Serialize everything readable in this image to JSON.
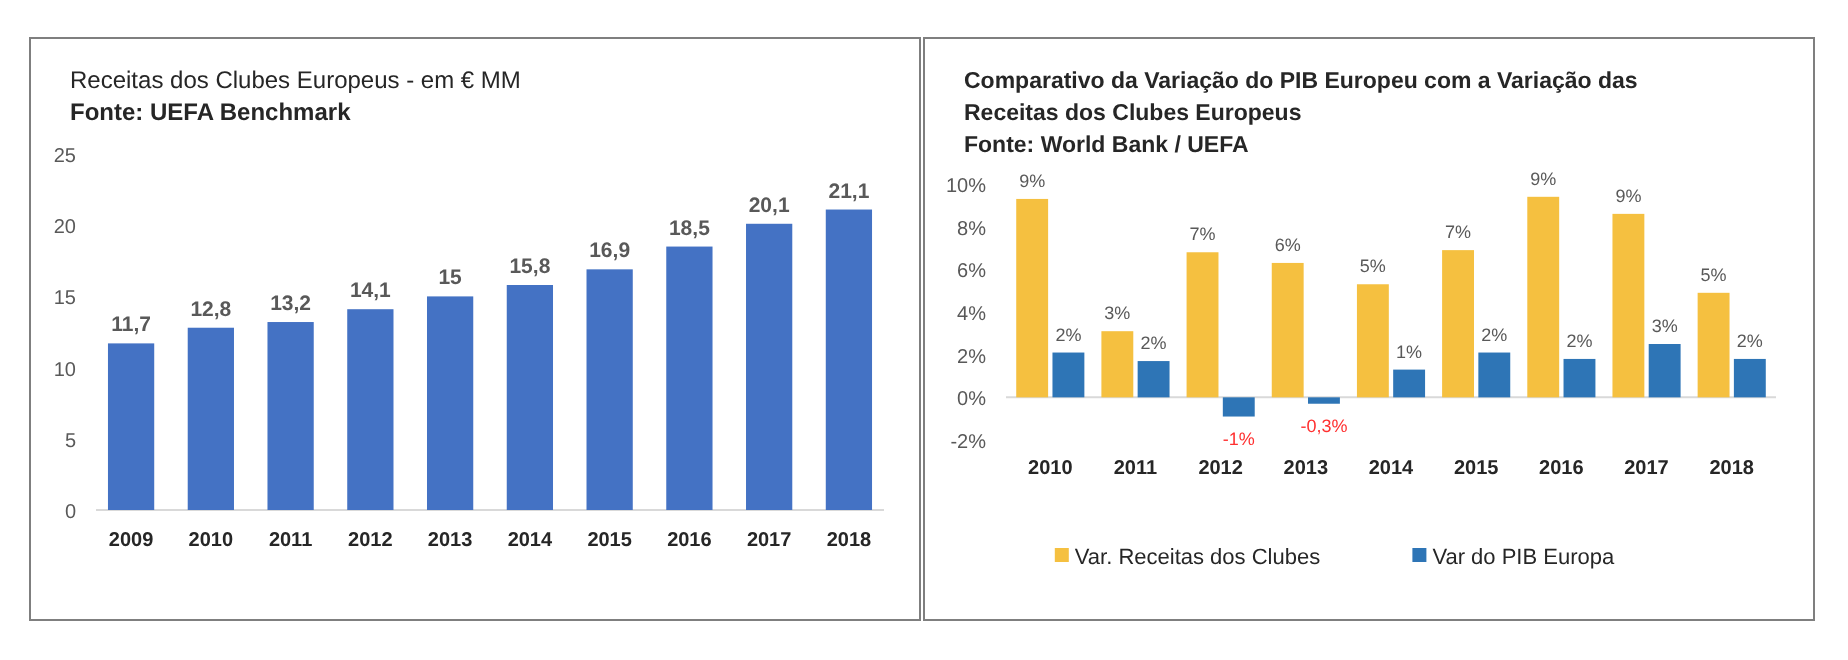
{
  "chart_data": [
    {
      "type": "bar",
      "title": "Receitas dos Clubes Europeus - em € MM",
      "subtitle": "Fonte: UEFA Benchmark",
      "categories": [
        "2009",
        "2010",
        "2011",
        "2012",
        "2013",
        "2014",
        "2015",
        "2016",
        "2017",
        "2018"
      ],
      "values": [
        11.7,
        12.8,
        13.2,
        14.1,
        15,
        15.8,
        16.9,
        18.5,
        20.1,
        21.1
      ],
      "value_labels": [
        "11,7",
        "12,8",
        "13,2",
        "14,1",
        "15",
        "15,8",
        "16,9",
        "18,5",
        "20,1",
        "21,1"
      ],
      "color": "#4472c4",
      "ylim": [
        0,
        25
      ],
      "yticks": [
        0,
        5,
        10,
        15,
        20,
        25
      ],
      "grid": false,
      "legend": false
    },
    {
      "type": "bar",
      "title": "Comparativo da Variação do PIB Europeu com a Variação das Receitas dos Clubes Europeus",
      "subtitle": "Fonte: World Bank / UEFA",
      "categories": [
        "2010",
        "2011",
        "2012",
        "2013",
        "2014",
        "2015",
        "2016",
        "2017",
        "2018"
      ],
      "series": [
        {
          "name": "Var. Receitas dos Clubes",
          "color": "#f5c040",
          "values": [
            9.3,
            3.1,
            6.8,
            6.3,
            5.3,
            6.9,
            9.4,
            8.6,
            4.9
          ],
          "value_labels": [
            "9%",
            "3%",
            "7%",
            "6%",
            "5%",
            "7%",
            "9%",
            "9%",
            "5%"
          ]
        },
        {
          "name": "Var do PIB Europa",
          "color": "#2e75b6",
          "values": [
            2.1,
            1.7,
            -0.9,
            -0.3,
            1.3,
            2.1,
            1.8,
            2.5,
            1.8
          ],
          "value_labels": [
            "2%",
            "2%",
            "-1%",
            "-0,3%",
            "1%",
            "2%",
            "2%",
            "3%",
            "2%"
          ]
        }
      ],
      "ylim": [
        -2,
        10
      ],
      "yticks": [
        {
          "value": -2,
          "label": "-2%"
        },
        {
          "value": 0,
          "label": "0%"
        },
        {
          "value": 2,
          "label": "2%"
        },
        {
          "value": 4,
          "label": "4%"
        },
        {
          "value": 6,
          "label": "6%"
        },
        {
          "value": 8,
          "label": "8%"
        },
        {
          "value": 10,
          "label": "10%"
        }
      ],
      "legend": "bottom"
    }
  ]
}
